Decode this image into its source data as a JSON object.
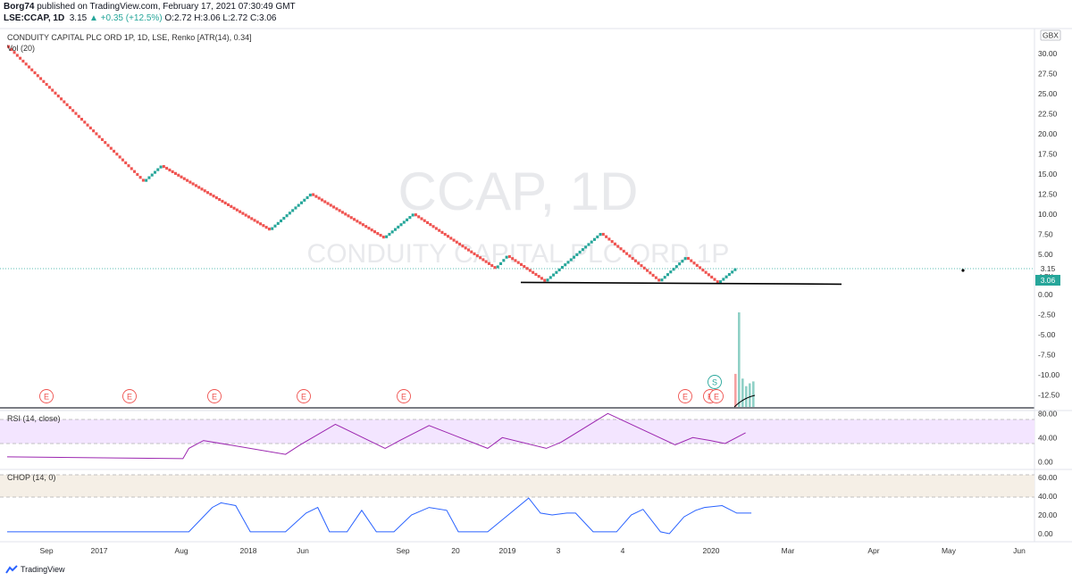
{
  "header": {
    "author": "Borg74",
    "published": "published on TradingView.com, February 17, 2021 07:30:49 GMT",
    "symbol": "LSE:CCAP, 1D",
    "last": "3.15",
    "change": "+0.35 (+12.5%)",
    "ohlc": "O:2.72 H:3.06 L:2.72 C:3.06"
  },
  "panes": {
    "main_label": "CONDUITY CAPITAL PLC ORD 1P, 1D, LSE, Renko [ATR(14), 0.34]",
    "vol_label": "Vol (20)",
    "rsi_label": "RSI (14, close)",
    "chop_label": "CHOP (14, 0)",
    "currency": "GBX",
    "watermark_symbol": "CCAP, 1D",
    "watermark_name": "CONDUITY CAPITAL PLC ORD 1P",
    "price_tag_1": "3.15",
    "price_tag_2": "3.06",
    "earnings_marker": "E",
    "split_marker": "S"
  },
  "branding": {
    "name": "TradingView"
  },
  "colors": {
    "up": "#26a69a",
    "down": "#ef5350",
    "rsi": "#9c27b0",
    "chop": "#2962ff"
  },
  "chart_data": {
    "type": "line",
    "renko_turning_points": [
      {
        "brick": 0,
        "price": 31.0
      },
      {
        "brick": 47,
        "price": 14.0
      },
      {
        "brick": 53,
        "price": 16.0
      },
      {
        "brick": 90,
        "price": 8.0
      },
      {
        "brick": 104,
        "price": 12.5
      },
      {
        "brick": 129,
        "price": 7.0
      },
      {
        "brick": 139,
        "price": 10.0
      },
      {
        "brick": 167,
        "price": 3.2
      },
      {
        "brick": 171,
        "price": 4.8
      },
      {
        "brick": 184,
        "price": 1.6
      },
      {
        "brick": 203,
        "price": 7.6
      },
      {
        "brick": 223,
        "price": 1.6
      },
      {
        "brick": 232,
        "price": 4.6
      },
      {
        "brick": 243,
        "price": 1.4
      },
      {
        "brick": 249,
        "price": 3.2
      }
    ],
    "support_line": {
      "price": 1.4
    },
    "price_axis": {
      "ticks": [
        "30.00",
        "27.50",
        "25.00",
        "22.50",
        "20.00",
        "17.50",
        "15.00",
        "12.50",
        "10.00",
        "7.50",
        "5.00",
        "2.50",
        "0.00",
        "-2.50",
        "-5.00",
        "-7.50",
        "-10.00",
        "-12.50"
      ],
      "range": [
        -13.5,
        32.5
      ]
    },
    "x_ticks": [
      "Sep",
      "2017",
      "Aug",
      "2018",
      "Jun",
      "Sep",
      "20",
      "2019",
      "3",
      "4",
      "2020",
      "Mar",
      "Apr",
      "May",
      "Jun"
    ],
    "volume_bars": [
      {
        "color": "down",
        "rel": 0.35
      },
      {
        "color": "up",
        "rel": 1.0
      },
      {
        "color": "up",
        "rel": 0.3
      },
      {
        "color": "up",
        "rel": 0.22
      },
      {
        "color": "up",
        "rel": 0.25
      },
      {
        "color": "up",
        "rel": 0.27
      }
    ],
    "rsi": {
      "ticks": [
        "80.00",
        "40.00",
        "0.00"
      ],
      "band": [
        30,
        70
      ],
      "values": [
        [
          0,
          8
        ],
        [
          60,
          5
        ],
        [
          62,
          22
        ],
        [
          67,
          35
        ],
        [
          95,
          12
        ],
        [
          100,
          28
        ],
        [
          112,
          62
        ],
        [
          129,
          22
        ],
        [
          134,
          35
        ],
        [
          144,
          60
        ],
        [
          164,
          22
        ],
        [
          169,
          40
        ],
        [
          184,
          22
        ],
        [
          189,
          32
        ],
        [
          205,
          80
        ],
        [
          228,
          28
        ],
        [
          234,
          40
        ],
        [
          240,
          35
        ],
        [
          245,
          30
        ],
        [
          252,
          48
        ]
      ]
    },
    "chop": {
      "ticks": [
        "60.00",
        "40.00",
        "20.00",
        "0.00"
      ],
      "band": [
        38.2,
        61.8
      ],
      "values": [
        [
          0,
          2
        ],
        [
          62,
          2
        ],
        [
          70,
          28
        ],
        [
          73,
          33
        ],
        [
          78,
          30
        ],
        [
          83,
          2
        ],
        [
          95,
          2
        ],
        [
          102,
          22
        ],
        [
          106,
          28
        ],
        [
          110,
          2
        ],
        [
          116,
          2
        ],
        [
          121,
          25
        ],
        [
          126,
          2
        ],
        [
          132,
          2
        ],
        [
          138,
          20
        ],
        [
          144,
          28
        ],
        [
          150,
          25
        ],
        [
          154,
          2
        ],
        [
          164,
          2
        ],
        [
          171,
          20
        ],
        [
          178,
          38
        ],
        [
          182,
          22
        ],
        [
          186,
          20
        ],
        [
          191,
          22
        ],
        [
          194,
          22
        ],
        [
          200,
          2
        ],
        [
          208,
          2
        ],
        [
          213,
          20
        ],
        [
          217,
          26
        ],
        [
          223,
          2
        ],
        [
          226,
          0
        ],
        [
          231,
          18
        ],
        [
          235,
          25
        ],
        [
          238,
          28
        ],
        [
          244,
          30
        ],
        [
          249,
          22
        ],
        [
          254,
          22
        ]
      ]
    }
  }
}
